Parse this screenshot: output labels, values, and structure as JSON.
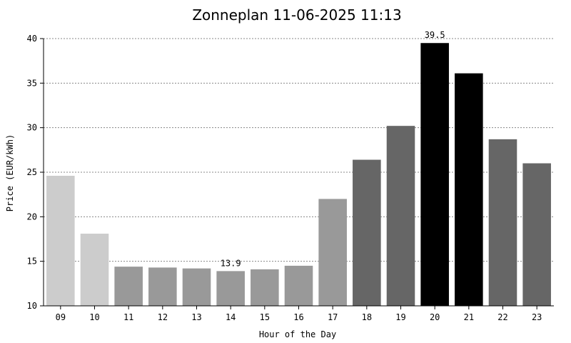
{
  "chart_data": {
    "type": "bar",
    "title": "Zonneplan 11-06-2025 11:13",
    "xlabel": "Hour of the Day",
    "ylabel": "Price (EUR/kWh)",
    "ylim": [
      10,
      40
    ],
    "yticks": [
      10,
      15,
      20,
      25,
      30,
      35,
      40
    ],
    "grid": true,
    "categories": [
      "09",
      "10",
      "11",
      "12",
      "13",
      "14",
      "15",
      "16",
      "17",
      "18",
      "19",
      "20",
      "21",
      "22",
      "23"
    ],
    "values": [
      24.6,
      18.1,
      14.4,
      14.3,
      14.2,
      13.9,
      14.1,
      14.5,
      22.0,
      26.4,
      30.2,
      39.5,
      36.1,
      28.7,
      26.0
    ],
    "bar_colors": [
      "#cccccc",
      "#cccccc",
      "#999999",
      "#999999",
      "#999999",
      "#999999",
      "#999999",
      "#999999",
      "#999999",
      "#666666",
      "#666666",
      "#000000",
      "#000000",
      "#666666",
      "#666666"
    ],
    "annotations": [
      {
        "category": "20",
        "label": "39.5"
      },
      {
        "category": "14",
        "label": "13.9"
      }
    ]
  }
}
